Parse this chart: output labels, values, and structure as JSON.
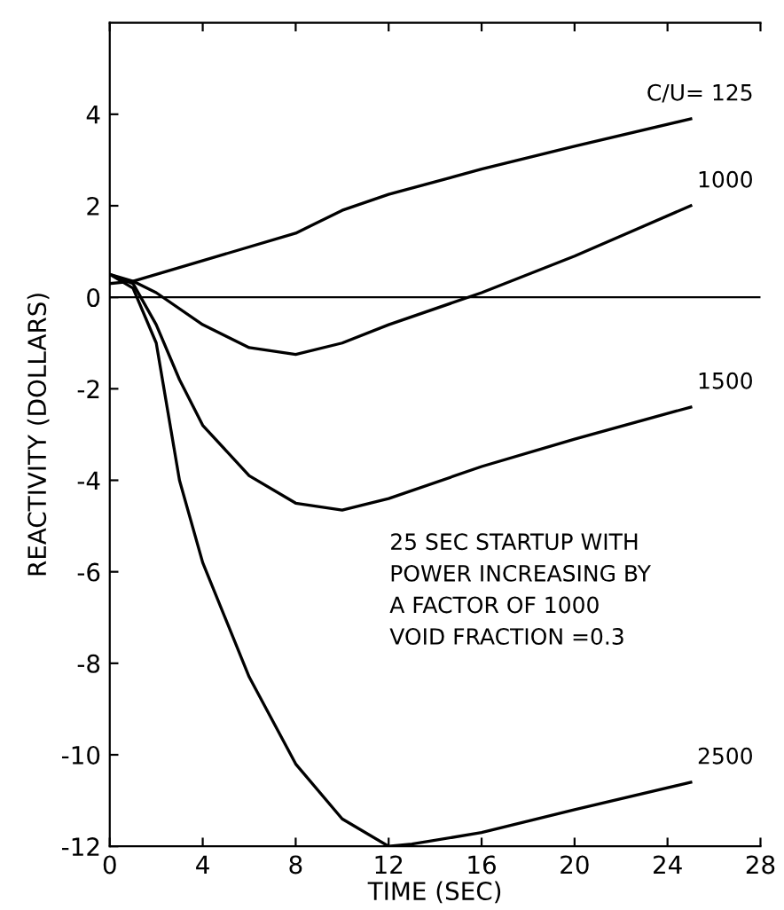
{
  "chart_data": {
    "type": "line",
    "xlabel": "TIME (SEC)",
    "ylabel": "REACTIVITY (DOLLARS)",
    "xlim": [
      0,
      28
    ],
    "ylim": [
      -12,
      6
    ],
    "xticks": [
      0,
      4,
      8,
      12,
      16,
      20,
      24,
      28
    ],
    "yticks": [
      -12,
      -10,
      -8,
      -6,
      -4,
      -2,
      0,
      2,
      4
    ],
    "grid": false,
    "legend": false,
    "ref_lines": [
      {
        "axis": "y",
        "value": 0,
        "color": "#000000",
        "line_style": "solid"
      }
    ],
    "annotations": [
      "25 SEC STARTUP WITH\nPOWER INCREASING BY\nA FACTOR OF 1000\nVOID FRACTION =0.3"
    ],
    "series": [
      {
        "name": "C/U= 125",
        "color": "#000000",
        "x": [
          0,
          1,
          4,
          8,
          10,
          12,
          16,
          20,
          25
        ],
        "values": [
          0.3,
          0.35,
          0.8,
          1.4,
          1.9,
          2.25,
          2.8,
          3.3,
          3.9
        ]
      },
      {
        "name": "1000",
        "color": "#000000",
        "x": [
          0,
          1,
          2,
          4,
          6,
          8,
          10,
          12,
          16,
          20,
          25
        ],
        "values": [
          0.5,
          0.35,
          0.1,
          -0.6,
          -1.1,
          -1.25,
          -1.0,
          -0.6,
          0.1,
          0.9,
          2.0
        ]
      },
      {
        "name": "1500",
        "color": "#000000",
        "x": [
          0,
          1,
          2,
          3,
          4,
          6,
          8,
          10,
          12,
          16,
          20,
          25
        ],
        "values": [
          0.5,
          0.3,
          -0.6,
          -1.8,
          -2.8,
          -3.9,
          -4.5,
          -4.65,
          -4.4,
          -3.7,
          -3.1,
          -2.4
        ]
      },
      {
        "name": "2500",
        "color": "#000000",
        "x": [
          0,
          1,
          2,
          2.5,
          3,
          4,
          6,
          8,
          10,
          12,
          13,
          16,
          20,
          25
        ],
        "values": [
          0.5,
          0.2,
          -1.0,
          -2.5,
          -4.0,
          -5.8,
          -8.3,
          -10.2,
          -11.4,
          -12.0,
          -11.95,
          -11.7,
          -11.2,
          -10.6
        ]
      }
    ]
  }
}
